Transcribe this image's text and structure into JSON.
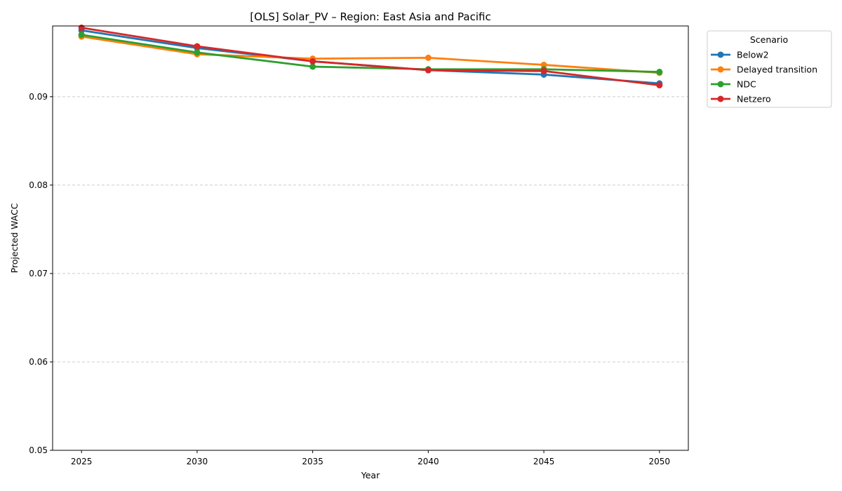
{
  "chart_data": {
    "type": "line",
    "title": "[OLS] Solar_PV – Region: East Asia and Pacific",
    "xlabel": "Year",
    "ylabel": "Projected WACC",
    "x": [
      2025,
      2030,
      2035,
      2040,
      2045,
      2050
    ],
    "xlim": [
      2023.75,
      2051.25
    ],
    "ylim": [
      0.05,
      0.098
    ],
    "yticks": [
      0.05,
      0.06,
      0.07,
      0.08,
      0.09
    ],
    "ytick_labels": [
      "0.05",
      "0.06",
      "0.07",
      "0.08",
      "0.09"
    ],
    "xtick_labels": [
      "2025",
      "2030",
      "2035",
      "2040",
      "2045",
      "2050"
    ],
    "grid": "y-dashed",
    "legend": {
      "title": "Scenario",
      "placement": "outside-top-right"
    },
    "series": [
      {
        "name": "Below2",
        "color": "#1f77b4",
        "values": [
          0.0975,
          0.0955,
          0.094,
          0.093,
          0.0925,
          0.0915
        ]
      },
      {
        "name": "Delayed transition",
        "color": "#ff7f0e",
        "values": [
          0.0968,
          0.0948,
          0.0943,
          0.0944,
          0.0936,
          0.0927
        ]
      },
      {
        "name": "NDC",
        "color": "#2ca02c",
        "values": [
          0.097,
          0.095,
          0.0934,
          0.0931,
          0.0931,
          0.0928
        ]
      },
      {
        "name": "Netzero",
        "color": "#d62728",
        "values": [
          0.0978,
          0.0957,
          0.094,
          0.093,
          0.0929,
          0.0913
        ]
      }
    ]
  }
}
